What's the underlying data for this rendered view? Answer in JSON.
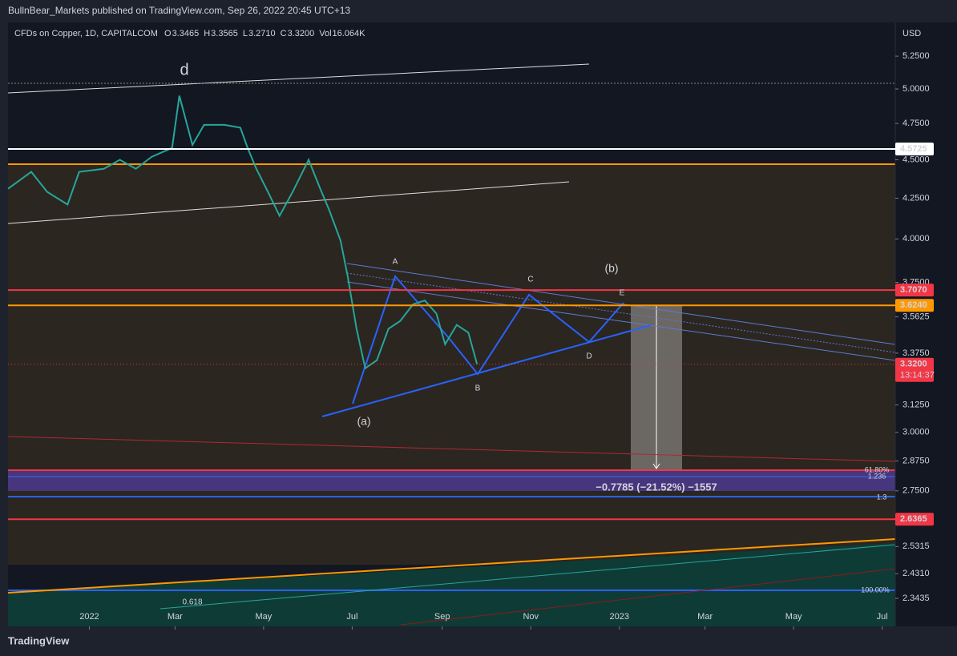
{
  "header": "BullnBear_Markets published on TradingView.com, Sep 26, 2022 20:45 UTC+13",
  "footer": "TradingView",
  "chart_data": {
    "type": "line",
    "symbol": "CFDs on Copper, 1D, CAPITALCOM",
    "ohlc": [
      {
        "name": "O",
        "value": 3.3465
      },
      {
        "name": "H",
        "value": 3.3565
      },
      {
        "name": "L",
        "value": 3.271,
        "label": "3.2710"
      },
      {
        "name": "C",
        "value": 3.32,
        "label": "3.3200"
      },
      {
        "name": "Vol",
        "value": 16064,
        "label": "16.064K"
      }
    ],
    "currency": "USD",
    "log_scale": true,
    "color": "#26a69a",
    "x": [
      -56,
      -40,
      -29,
      -15,
      -7,
      10,
      21,
      32,
      43,
      57,
      62,
      71,
      79,
      93,
      104,
      109,
      115,
      123,
      131,
      140,
      151,
      159,
      165,
      173,
      178,
      184,
      190,
      198,
      206,
      214,
      223,
      231,
      239,
      245,
      253,
      261,
      267
    ],
    "values": [
      4.31,
      4.42,
      4.29,
      4.21,
      4.42,
      4.44,
      4.5,
      4.44,
      4.52,
      4.58,
      4.95,
      4.6,
      4.74,
      4.74,
      4.72,
      4.58,
      4.44,
      4.29,
      4.14,
      4.29,
      4.5,
      4.31,
      4.18,
      3.99,
      3.78,
      3.5,
      3.3,
      3.34,
      3.5,
      3.54,
      3.63,
      3.65,
      3.58,
      3.42,
      3.52,
      3.48,
      3.32
    ],
    "xlim": [
      -56,
      555
    ],
    "xticks": [
      {
        "value": 0,
        "label": "2022"
      },
      {
        "value": 59,
        "label": "Mar"
      },
      {
        "value": 120,
        "label": "May"
      },
      {
        "value": 181,
        "label": "Jul"
      },
      {
        "value": 243,
        "label": "Sep"
      },
      {
        "value": 304,
        "label": "Nov"
      },
      {
        "value": 365,
        "label": "2023"
      },
      {
        "value": 424,
        "label": "Mar"
      },
      {
        "value": 485,
        "label": "May"
      },
      {
        "value": 546,
        "label": "Jul"
      }
    ],
    "ylim": [
      2.248,
      5.52
    ],
    "yticks": [
      {
        "value": 5.25,
        "label": "5.2500"
      },
      {
        "value": 5,
        "label": "5.0000"
      },
      {
        "value": 4.75,
        "label": "4.7500"
      },
      {
        "value": 4.5,
        "label": "4.5000"
      },
      {
        "value": 4.25,
        "label": "4.2500"
      },
      {
        "value": 4,
        "label": "4.0000"
      },
      {
        "value": 3.75,
        "label": "3.7500"
      },
      {
        "value": 3.5625,
        "label": "3.5625"
      },
      {
        "value": 3.375,
        "label": "3.3750"
      },
      {
        "value": 3.125,
        "label": "3.1250"
      },
      {
        "value": 3,
        "label": "3.0000"
      },
      {
        "value": 2.875,
        "label": "2.8750"
      },
      {
        "value": 2.75,
        "label": "2.7500"
      },
      {
        "value": 2.5315
      },
      {
        "value": 2.431,
        "label": "2.4310"
      },
      {
        "value": 2.3435
      }
    ],
    "levels": [
      {
        "value": 4.5725,
        "color": "#ffffff"
      },
      {
        "value": 3.707,
        "label": "3.7070",
        "color": "#f23645"
      },
      {
        "value": 3.624,
        "label": "3.6240",
        "color": "#ff9800"
      },
      {
        "value": 3.32,
        "label": "3.3200",
        "countdown": "13:14:37",
        "color": "#f23645"
      },
      {
        "value": 2.6365,
        "color": "#f23645"
      }
    ],
    "annotations": [
      "d",
      "(a)",
      "(b)",
      "A",
      "B",
      "C",
      "D",
      "E",
      "61.80%",
      "1.236",
      "1.3",
      "100.00%",
      "0.618",
      "−0.7785 (−21.52%) −1557"
    ]
  }
}
